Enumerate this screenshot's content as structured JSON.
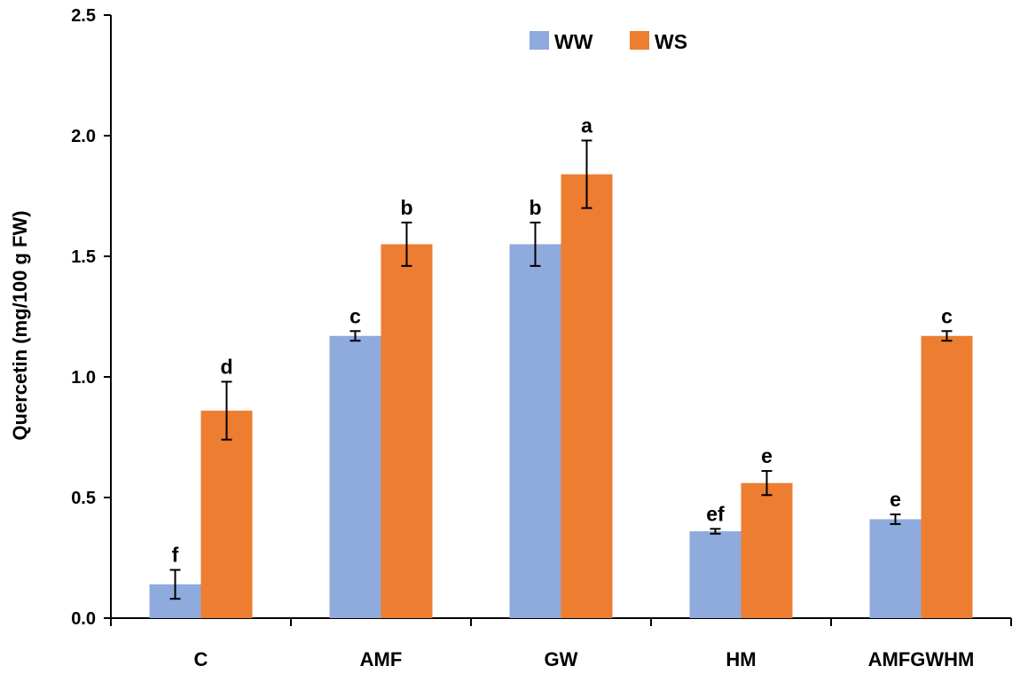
{
  "chart_data": {
    "type": "bar",
    "title": "",
    "xlabel": "",
    "ylabel": "Quercetin (mg/100 g FW)",
    "ylim": [
      0,
      2.5
    ],
    "yticks": [
      "0.0",
      "0.5",
      "1.0",
      "1.5",
      "2.0",
      "2.5"
    ],
    "ytick_values": [
      0,
      0.5,
      1.0,
      1.5,
      2.0,
      2.5
    ],
    "categories": [
      "C",
      "AMF",
      "GW",
      "HM",
      "AMFGWHM"
    ],
    "legend_position": "top-center",
    "series": [
      {
        "name": "WW",
        "color": "#8FAADC",
        "values": [
          0.14,
          1.17,
          1.55,
          0.36,
          0.41
        ],
        "errors": [
          0.06,
          0.02,
          0.09,
          0.01,
          0.02
        ],
        "letters": [
          "f",
          "c",
          "b",
          "ef",
          "e"
        ]
      },
      {
        "name": "WS",
        "color": "#ED7D31",
        "values": [
          0.86,
          1.55,
          1.84,
          0.56,
          1.17
        ],
        "errors": [
          0.12,
          0.09,
          0.14,
          0.05,
          0.02
        ],
        "letters": [
          "d",
          "b",
          "a",
          "e",
          "c"
        ]
      }
    ]
  }
}
